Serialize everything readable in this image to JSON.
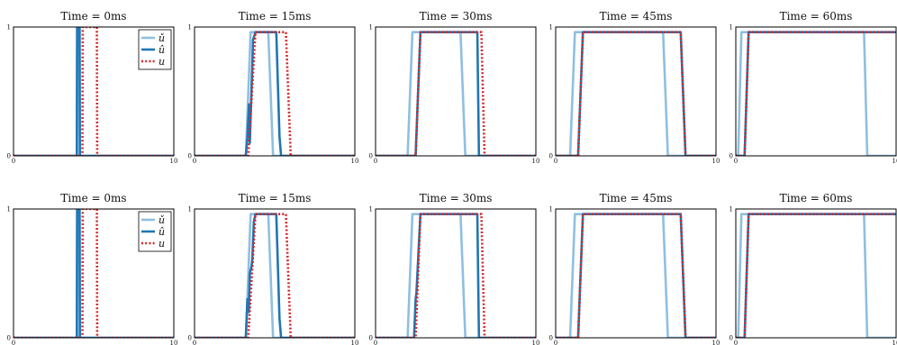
{
  "figure": {
    "colors": {
      "u_check": "#8fbfe0",
      "u_hat": "#1f77b4",
      "u": "#d62728"
    }
  },
  "chart_data": [
    {
      "type": "line",
      "title": "Time = 0ms",
      "xlim": [
        0,
        10
      ],
      "ylim": [
        0,
        1
      ],
      "xticks": [
        "0",
        "10"
      ],
      "yticks": [
        "0",
        "1"
      ],
      "legend": {
        "placement": "top-right",
        "entries": [
          "ǔ",
          "û",
          "u"
        ]
      },
      "series": [
        {
          "name": "ǔ",
          "color": "#8fbfe0",
          "style": "solid",
          "x": [
            0,
            3.95,
            3.97,
            4.12,
            4.14,
            10
          ],
          "y": [
            0,
            0,
            1,
            1,
            0,
            0
          ]
        },
        {
          "name": "û",
          "color": "#1f77b4",
          "style": "solid",
          "x": [
            0,
            3.95,
            3.97,
            4.12,
            4.14,
            10
          ],
          "y": [
            0,
            0,
            1,
            1,
            0,
            0
          ]
        },
        {
          "name": "u",
          "color": "#d62728",
          "style": "dotted",
          "x": [
            0,
            4.3,
            4.32,
            5.2,
            5.22,
            10
          ],
          "y": [
            0,
            0,
            1,
            1,
            0,
            0
          ]
        }
      ]
    },
    {
      "type": "line",
      "title": "Time = 15ms",
      "xlim": [
        0,
        10
      ],
      "ylim": [
        0,
        1
      ],
      "xticks": [
        "0",
        "10"
      ],
      "yticks": [
        "0",
        "1"
      ],
      "series": [
        {
          "color": "#8fbfe0",
          "style": "solid",
          "x": [
            0,
            3.2,
            3.5,
            4.6,
            4.9,
            10
          ],
          "y": [
            0,
            0,
            0.96,
            0.96,
            0,
            0
          ]
        },
        {
          "color": "#1f77b4",
          "style": "solid",
          "x": [
            0,
            3.2,
            3.3,
            3.4,
            3.45,
            3.55,
            3.65,
            3.8,
            5.1,
            5.3,
            5.4,
            10
          ],
          "y": [
            0,
            0,
            0.15,
            0.4,
            0.1,
            0.5,
            0.9,
            0.96,
            0.96,
            0.15,
            0,
            0
          ]
        },
        {
          "color": "#d62728",
          "style": "dotted",
          "x": [
            0,
            3.35,
            3.8,
            5.7,
            6.0,
            10
          ],
          "y": [
            0,
            0,
            0.96,
            0.96,
            0,
            0
          ]
        }
      ]
    },
    {
      "type": "line",
      "title": "Time = 30ms",
      "xlim": [
        0,
        10
      ],
      "ylim": [
        0,
        1
      ],
      "xticks": [
        "0",
        "10"
      ],
      "yticks": [
        "0",
        "1"
      ],
      "series": [
        {
          "color": "#8fbfe0",
          "style": "solid",
          "x": [
            0,
            2.0,
            2.3,
            5.3,
            5.6,
            10
          ],
          "y": [
            0,
            0,
            0.96,
            0.96,
            0,
            0
          ]
        },
        {
          "color": "#1f77b4",
          "style": "solid",
          "x": [
            0,
            2.5,
            2.8,
            6.35,
            6.45,
            10
          ],
          "y": [
            0,
            0,
            0.96,
            0.96,
            0,
            0
          ]
        },
        {
          "color": "#d62728",
          "style": "dotted",
          "x": [
            0,
            2.5,
            2.8,
            6.6,
            6.8,
            10
          ],
          "y": [
            0,
            0,
            0.96,
            0.96,
            0,
            0
          ]
        }
      ]
    },
    {
      "type": "line",
      "title": "Time = 45ms",
      "xlim": [
        0,
        10
      ],
      "ylim": [
        0,
        1
      ],
      "xticks": [
        "0",
        "10"
      ],
      "yticks": [
        "0",
        "1"
      ],
      "series": [
        {
          "color": "#8fbfe0",
          "style": "solid",
          "x": [
            0,
            0.9,
            1.2,
            6.7,
            7.0,
            10
          ],
          "y": [
            0,
            0,
            0.96,
            0.96,
            0,
            0
          ]
        },
        {
          "color": "#1f77b4",
          "style": "solid",
          "x": [
            0,
            1.4,
            1.7,
            7.8,
            8.1,
            10
          ],
          "y": [
            0,
            0,
            0.96,
            0.96,
            0,
            0
          ]
        },
        {
          "color": "#d62728",
          "style": "dotted",
          "x": [
            0,
            1.4,
            1.7,
            7.8,
            8.1,
            10
          ],
          "y": [
            0,
            0,
            0.96,
            0.96,
            0,
            0
          ]
        }
      ]
    },
    {
      "type": "line",
      "title": "Time = 60ms",
      "xlim": [
        0,
        10
      ],
      "ylim": [
        0,
        1
      ],
      "xticks": [
        "0",
        "10"
      ],
      "yticks": [
        "0",
        "1"
      ],
      "series": [
        {
          "color": "#8fbfe0",
          "style": "solid",
          "x": [
            0,
            0.15,
            0.35,
            8.0,
            8.2,
            10
          ],
          "y": [
            0,
            0,
            0.96,
            0.96,
            0,
            0
          ]
        },
        {
          "color": "#1f77b4",
          "style": "solid",
          "x": [
            0,
            0.55,
            0.8,
            10
          ],
          "y": [
            0,
            0,
            0.96,
            0.96
          ]
        },
        {
          "color": "#d62728",
          "style": "dotted",
          "x": [
            0,
            0.55,
            0.8,
            10
          ],
          "y": [
            0,
            0,
            0.96,
            0.96
          ]
        }
      ]
    },
    {
      "type": "line",
      "title": "Time = 0ms",
      "xlim": [
        0,
        10
      ],
      "ylim": [
        0,
        1
      ],
      "xticks": [
        "0",
        "10"
      ],
      "yticks": [
        "0",
        "1"
      ],
      "legend": {
        "placement": "top-right",
        "entries": [
          "ǔ",
          "û",
          "u"
        ]
      },
      "series": [
        {
          "name": "ǔ",
          "color": "#8fbfe0",
          "style": "solid",
          "x": [
            0,
            3.95,
            3.97,
            4.12,
            4.14,
            10
          ],
          "y": [
            0,
            0,
            1,
            1,
            0,
            0
          ]
        },
        {
          "name": "û",
          "color": "#1f77b4",
          "style": "solid",
          "x": [
            0,
            3.95,
            3.97,
            4.12,
            4.14,
            10
          ],
          "y": [
            0,
            0,
            1,
            1,
            0,
            0
          ]
        },
        {
          "name": "u",
          "color": "#d62728",
          "style": "dotted",
          "x": [
            0,
            4.3,
            4.32,
            5.2,
            5.22,
            10
          ],
          "y": [
            0,
            0,
            1,
            1,
            0,
            0
          ]
        }
      ]
    },
    {
      "type": "line",
      "title": "Time = 15ms",
      "xlim": [
        0,
        10
      ],
      "ylim": [
        0,
        1
      ],
      "xticks": [
        "0",
        "10"
      ],
      "yticks": [
        "0",
        "1"
      ],
      "series": [
        {
          "color": "#8fbfe0",
          "style": "solid",
          "x": [
            0,
            3.2,
            3.5,
            4.6,
            4.9,
            10
          ],
          "y": [
            0,
            0,
            0.96,
            0.96,
            0,
            0
          ]
        },
        {
          "color": "#1f77b4",
          "style": "solid",
          "x": [
            0,
            3.2,
            3.3,
            3.38,
            3.45,
            3.55,
            3.6,
            3.7,
            3.8,
            5.1,
            5.3,
            5.4,
            10
          ],
          "y": [
            0,
            0,
            0.3,
            0.2,
            0.5,
            0.55,
            0.6,
            0.9,
            0.96,
            0.96,
            0.15,
            0,
            0
          ]
        },
        {
          "color": "#d62728",
          "style": "dotted",
          "x": [
            0,
            3.35,
            3.8,
            5.7,
            6.0,
            10
          ],
          "y": [
            0,
            0,
            0.96,
            0.96,
            0,
            0
          ]
        }
      ]
    },
    {
      "type": "line",
      "title": "Time = 30ms",
      "xlim": [
        0,
        10
      ],
      "ylim": [
        0,
        1
      ],
      "xticks": [
        "0",
        "10"
      ],
      "yticks": [
        "0",
        "1"
      ],
      "series": [
        {
          "color": "#8fbfe0",
          "style": "solid",
          "x": [
            0,
            2.0,
            2.3,
            5.3,
            5.6,
            10
          ],
          "y": [
            0,
            0,
            0.96,
            0.96,
            0,
            0
          ]
        },
        {
          "color": "#1f77b4",
          "style": "solid",
          "x": [
            0,
            2.4,
            2.5,
            2.55,
            2.8,
            6.35,
            6.45,
            10
          ],
          "y": [
            0,
            0,
            0.3,
            0.35,
            0.96,
            0.96,
            0,
            0
          ]
        },
        {
          "color": "#d62728",
          "style": "dotted",
          "x": [
            0,
            2.5,
            2.8,
            6.6,
            6.8,
            10
          ],
          "y": [
            0,
            0,
            0.96,
            0.96,
            0,
            0
          ]
        }
      ]
    },
    {
      "type": "line",
      "title": "Time = 45ms",
      "xlim": [
        0,
        10
      ],
      "ylim": [
        0,
        1
      ],
      "xticks": [
        "0",
        "10"
      ],
      "yticks": [
        "0",
        "1"
      ],
      "series": [
        {
          "color": "#8fbfe0",
          "style": "solid",
          "x": [
            0,
            0.9,
            1.2,
            6.7,
            7.0,
            10
          ],
          "y": [
            0,
            0,
            0.96,
            0.96,
            0,
            0
          ]
        },
        {
          "color": "#1f77b4",
          "style": "solid",
          "x": [
            0,
            1.4,
            1.7,
            7.8,
            8.1,
            10
          ],
          "y": [
            0,
            0,
            0.96,
            0.96,
            0,
            0
          ]
        },
        {
          "color": "#d62728",
          "style": "dotted",
          "x": [
            0,
            1.4,
            1.7,
            7.8,
            8.1,
            10
          ],
          "y": [
            0,
            0,
            0.96,
            0.96,
            0,
            0
          ]
        }
      ]
    },
    {
      "type": "line",
      "title": "Time = 60ms",
      "xlim": [
        0,
        10
      ],
      "ylim": [
        0,
        1
      ],
      "xticks": [
        "0",
        "10"
      ],
      "yticks": [
        "0",
        "1"
      ],
      "series": [
        {
          "color": "#8fbfe0",
          "style": "solid",
          "x": [
            0,
            0.15,
            0.35,
            8.0,
            8.2,
            10
          ],
          "y": [
            0,
            0,
            0.96,
            0.96,
            0,
            0
          ]
        },
        {
          "color": "#1f77b4",
          "style": "solid",
          "x": [
            0,
            0.55,
            0.8,
            10
          ],
          "y": [
            0,
            0,
            0.96,
            0.96
          ]
        },
        {
          "color": "#d62728",
          "style": "dotted",
          "x": [
            0,
            0.55,
            0.8,
            10
          ],
          "y": [
            0,
            0,
            0.96,
            0.96
          ]
        }
      ]
    }
  ]
}
